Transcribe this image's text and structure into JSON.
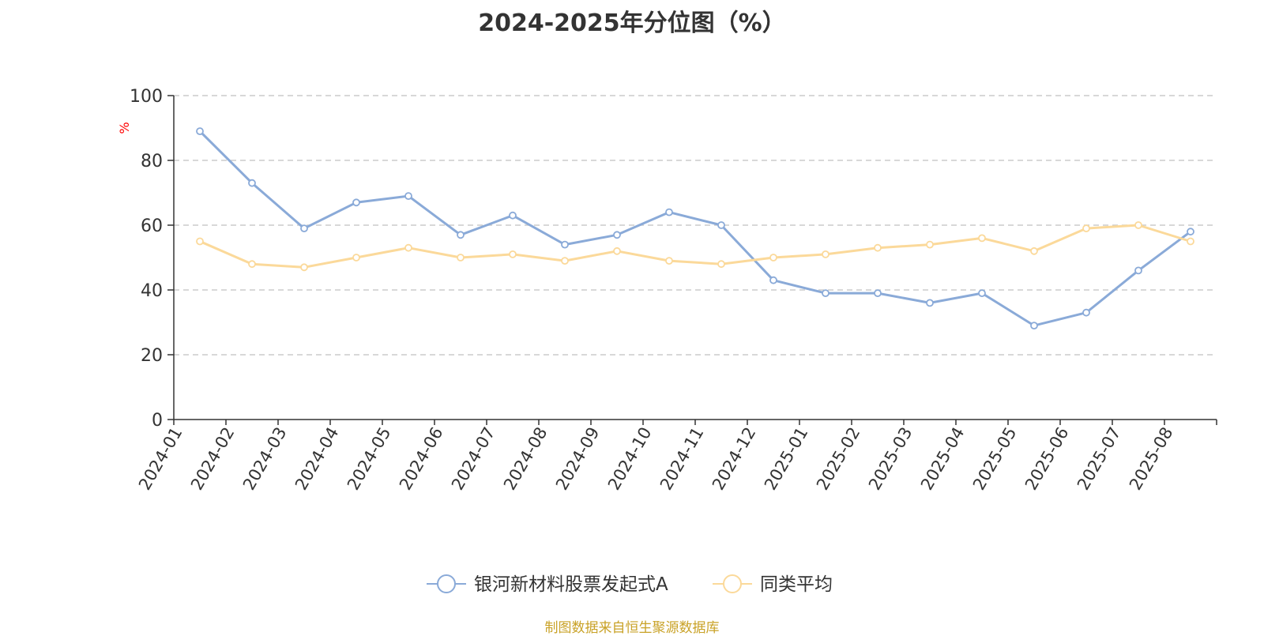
{
  "chart_data": {
    "type": "line",
    "title": "2024-2025年分位图（%）",
    "ylabel": "%",
    "ylim": [
      0,
      100
    ],
    "yticks": [
      0,
      20,
      40,
      60,
      80,
      100
    ],
    "grid": true,
    "legend_position": "bottom-center",
    "categories": [
      "2024-01",
      "2024-02",
      "2024-03",
      "2024-04",
      "2024-05",
      "2024-06",
      "2024-07",
      "2024-08",
      "2024-09",
      "2024-10",
      "2024-11",
      "2024-12",
      "2025-01",
      "2025-02",
      "2025-03",
      "2025-04",
      "2025-05",
      "2025-06",
      "2025-07",
      "2025-08"
    ],
    "series": [
      {
        "name": "银河新材料股票发起式A",
        "color": "#8aaad8",
        "values": [
          89,
          73,
          59,
          67,
          69,
          57,
          63,
          54,
          57,
          64,
          60,
          43,
          39,
          39,
          36,
          39,
          29,
          33,
          46,
          58
        ]
      },
      {
        "name": "同类平均",
        "color": "#fbd99a",
        "values": [
          55,
          48,
          47,
          50,
          53,
          50,
          51,
          49,
          52,
          49,
          48,
          50,
          51,
          53,
          54,
          56,
          52,
          59,
          60,
          55
        ]
      }
    ]
  },
  "footer": {
    "source": "制图数据来自恒生聚源数据库"
  },
  "colors": {
    "ylabel": "#ff0000",
    "axis": "#333333",
    "grid": "#cccccc",
    "footer": "#c9a227"
  }
}
